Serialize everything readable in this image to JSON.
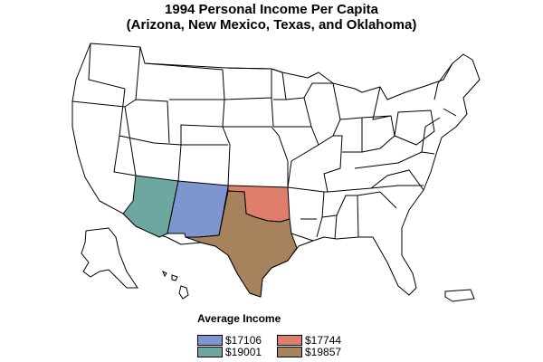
{
  "title": "1994 Personal Income Per Capita",
  "subtitle": "(Arizona, New Mexico, Texas, and Oklahoma)",
  "legend": {
    "title": "Average Income",
    "items": [
      {
        "label": "$17106",
        "color": "#7e95d0"
      },
      {
        "label": "$17744",
        "color": "#e07e6c"
      },
      {
        "label": "$19001",
        "color": "#6ca8a0"
      },
      {
        "label": "$19857",
        "color": "#a6835c"
      }
    ]
  },
  "highlighted_states": [
    {
      "state": "Arizona",
      "value": "$19001",
      "color": "#6ca8a0"
    },
    {
      "state": "New Mexico",
      "value": "$17106",
      "color": "#7e95d0"
    },
    {
      "state": "Texas",
      "value": "$19857",
      "color": "#a6835c"
    },
    {
      "state": "Oklahoma",
      "value": "$17744",
      "color": "#e07e6c"
    }
  ]
}
